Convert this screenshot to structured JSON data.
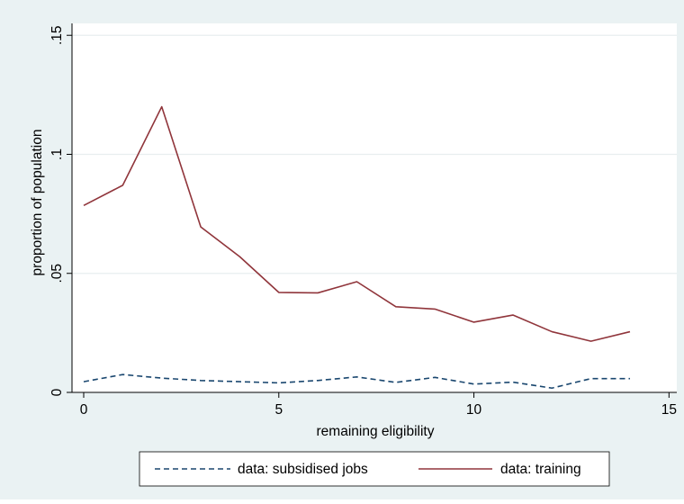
{
  "chart_data": {
    "type": "line",
    "xlabel": "remaining eligibility",
    "ylabel": "proportion of population",
    "xlim": [
      -0.3,
      15.2
    ],
    "ylim": [
      0,
      0.155
    ],
    "xticks": [
      0,
      5,
      10,
      15
    ],
    "xtick_labels": [
      "0",
      "5",
      "10",
      "15"
    ],
    "yticks": [
      0,
      0.05,
      0.1,
      0.15
    ],
    "ytick_labels": [
      "0",
      ".05",
      ".1",
      ".15"
    ],
    "grid": "horizontal",
    "legend_position": "bottom",
    "x": [
      0,
      1,
      2,
      3,
      4,
      5,
      6,
      7,
      8,
      9,
      10,
      11,
      12,
      13,
      14
    ],
    "series": [
      {
        "name": "data: subsidised jobs",
        "color": "#1a476f",
        "style": "dashed",
        "values": [
          0.0045,
          0.0075,
          0.006,
          0.005,
          0.0045,
          0.004,
          0.005,
          0.0065,
          0.0042,
          0.0063,
          0.0035,
          0.0043,
          0.0018,
          0.0058,
          0.0058
        ]
      },
      {
        "name": "data: training",
        "color": "#90353b",
        "style": "solid",
        "values": [
          0.0785,
          0.087,
          0.12,
          0.0695,
          0.057,
          0.042,
          0.0418,
          0.0465,
          0.036,
          0.035,
          0.0295,
          0.0325,
          0.0255,
          0.0215,
          0.0255
        ]
      }
    ]
  }
}
